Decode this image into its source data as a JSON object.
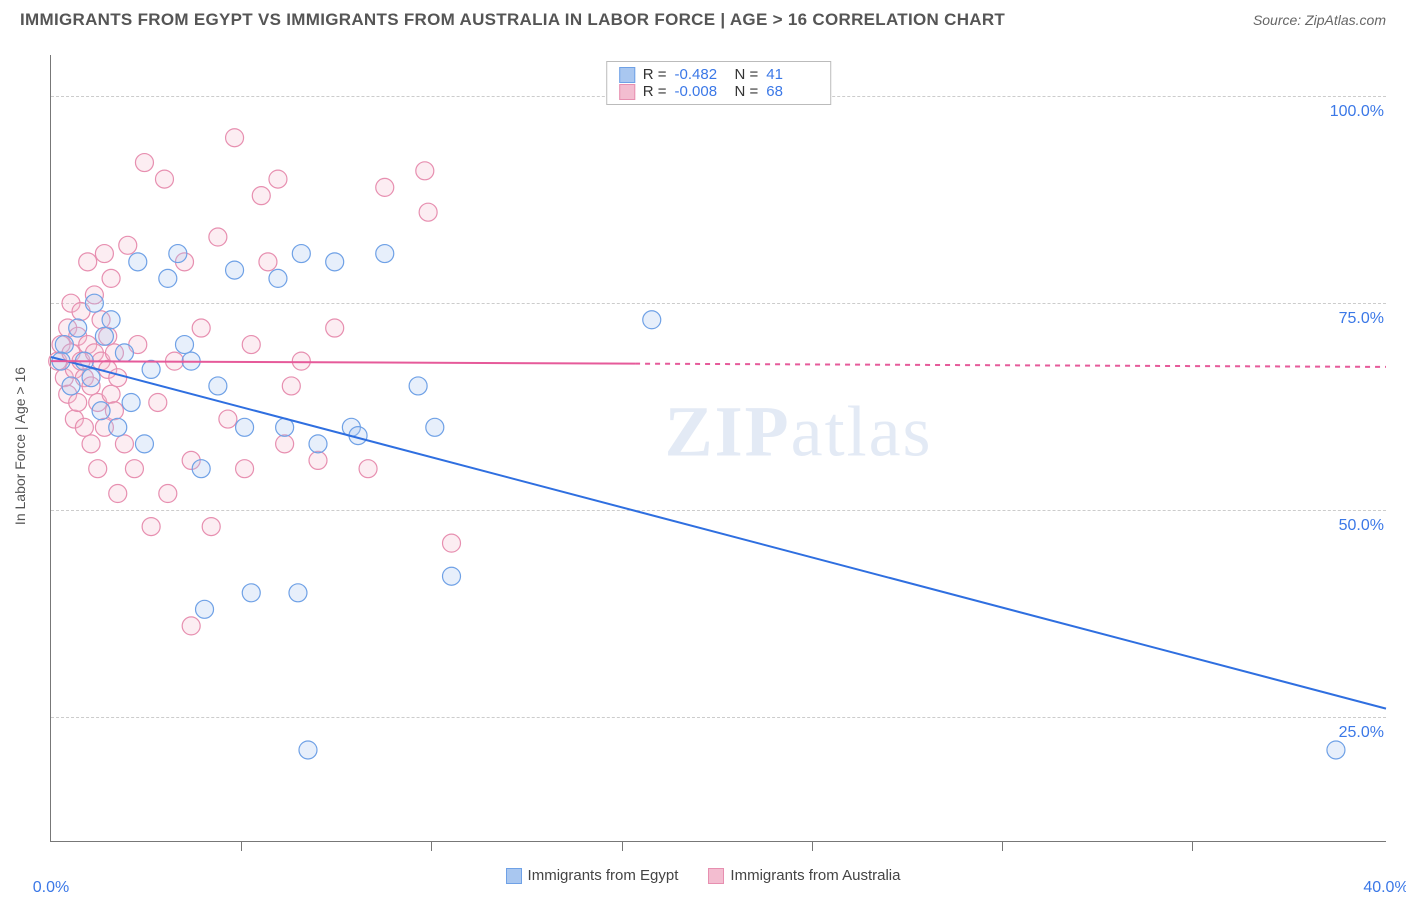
{
  "title": "IMMIGRANTS FROM EGYPT VS IMMIGRANTS FROM AUSTRALIA IN LABOR FORCE | AGE > 16 CORRELATION CHART",
  "source_prefix": "Source: ",
  "source_name": "ZipAtlas.com",
  "y_axis_label": "In Labor Force | Age > 16",
  "watermark_bold": "ZIP",
  "watermark_rest": "atlas",
  "chart": {
    "type": "scatter",
    "xlim": [
      0,
      40
    ],
    "ylim": [
      10,
      105
    ],
    "x_ticks": [
      0,
      40
    ],
    "x_tick_minor": [
      5.7,
      11.4,
      17.1,
      22.8,
      28.5,
      34.2
    ],
    "x_tick_labels": [
      "0.0%",
      "40.0%"
    ],
    "y_ticks": [
      25,
      50,
      75,
      100
    ],
    "y_tick_labels": [
      "25.0%",
      "50.0%",
      "75.0%",
      "100.0%"
    ],
    "background_color": "#ffffff",
    "grid_color": "#cccccc",
    "marker_radius": 9,
    "marker_stroke_width": 1.2,
    "marker_fill_opacity": 0.28,
    "series": [
      {
        "name": "Immigrants from Egypt",
        "color_stroke": "#6fa1e6",
        "color_fill": "#a9c7f0",
        "trend": {
          "x1": 0,
          "y1": 68.5,
          "x2": 40,
          "y2": 26,
          "solid_until_x": 40,
          "color": "#2f6fe0",
          "width": 2
        },
        "stats": {
          "R": "-0.482",
          "N": "41"
        },
        "points": [
          [
            0.4,
            70
          ],
          [
            0.6,
            65
          ],
          [
            0.8,
            72
          ],
          [
            1.0,
            68
          ],
          [
            1.2,
            66
          ],
          [
            1.3,
            75
          ],
          [
            1.5,
            62
          ],
          [
            1.6,
            71
          ],
          [
            1.8,
            73
          ],
          [
            2.0,
            60
          ],
          [
            2.2,
            69
          ],
          [
            2.4,
            63
          ],
          [
            2.6,
            80
          ],
          [
            2.8,
            58
          ],
          [
            3.0,
            67
          ],
          [
            3.5,
            78
          ],
          [
            3.8,
            81
          ],
          [
            4.0,
            70
          ],
          [
            4.2,
            68
          ],
          [
            4.5,
            55
          ],
          [
            4.6,
            38
          ],
          [
            5.0,
            65
          ],
          [
            5.5,
            79
          ],
          [
            5.8,
            60
          ],
          [
            6.0,
            40
          ],
          [
            6.8,
            78
          ],
          [
            7.0,
            60
          ],
          [
            7.4,
            40
          ],
          [
            7.5,
            81
          ],
          [
            8.0,
            58
          ],
          [
            8.5,
            80
          ],
          [
            9.0,
            60
          ],
          [
            9.2,
            59
          ],
          [
            10.0,
            81
          ],
          [
            11.0,
            65
          ],
          [
            11.5,
            60
          ],
          [
            12.0,
            42
          ],
          [
            7.7,
            21
          ],
          [
            18.0,
            73
          ],
          [
            38.5,
            21
          ],
          [
            0.3,
            68
          ]
        ]
      },
      {
        "name": "Immigrants from Australia",
        "color_stroke": "#e78fb0",
        "color_fill": "#f3bdd0",
        "trend": {
          "x1": 0,
          "y1": 68,
          "x2": 40,
          "y2": 67.3,
          "solid_until_x": 17.5,
          "color": "#e65a9a",
          "width": 2
        },
        "stats": {
          "R": "-0.008",
          "N": "68"
        },
        "points": [
          [
            0.2,
            68
          ],
          [
            0.3,
            70
          ],
          [
            0.4,
            66
          ],
          [
            0.5,
            72
          ],
          [
            0.5,
            64
          ],
          [
            0.6,
            69
          ],
          [
            0.6,
            75
          ],
          [
            0.7,
            61
          ],
          [
            0.7,
            67
          ],
          [
            0.8,
            71
          ],
          [
            0.8,
            63
          ],
          [
            0.9,
            68
          ],
          [
            0.9,
            74
          ],
          [
            1.0,
            60
          ],
          [
            1.0,
            66
          ],
          [
            1.1,
            70
          ],
          [
            1.1,
            80
          ],
          [
            1.2,
            58
          ],
          [
            1.2,
            65
          ],
          [
            1.3,
            69
          ],
          [
            1.3,
            76
          ],
          [
            1.4,
            55
          ],
          [
            1.4,
            63
          ],
          [
            1.5,
            68
          ],
          [
            1.5,
            73
          ],
          [
            1.6,
            81
          ],
          [
            1.6,
            60
          ],
          [
            1.7,
            67
          ],
          [
            1.7,
            71
          ],
          [
            1.8,
            64
          ],
          [
            1.8,
            78
          ],
          [
            1.9,
            62
          ],
          [
            1.9,
            69
          ],
          [
            2.0,
            52
          ],
          [
            2.0,
            66
          ],
          [
            2.2,
            58
          ],
          [
            2.3,
            82
          ],
          [
            2.5,
            55
          ],
          [
            2.6,
            70
          ],
          [
            2.8,
            92
          ],
          [
            3.0,
            48
          ],
          [
            3.2,
            63
          ],
          [
            3.4,
            90
          ],
          [
            3.5,
            52
          ],
          [
            3.7,
            68
          ],
          [
            4.0,
            80
          ],
          [
            4.2,
            56
          ],
          [
            4.2,
            36
          ],
          [
            4.5,
            72
          ],
          [
            4.8,
            48
          ],
          [
            5.0,
            83
          ],
          [
            5.3,
            61
          ],
          [
            5.5,
            95
          ],
          [
            5.8,
            55
          ],
          [
            6.0,
            70
          ],
          [
            6.3,
            88
          ],
          [
            6.5,
            80
          ],
          [
            6.8,
            90
          ],
          [
            7.0,
            58
          ],
          [
            7.5,
            68
          ],
          [
            8.0,
            56
          ],
          [
            8.5,
            72
          ],
          [
            9.5,
            55
          ],
          [
            10.0,
            89
          ],
          [
            11.2,
            91
          ],
          [
            11.3,
            86
          ],
          [
            12.0,
            46
          ],
          [
            7.2,
            65
          ]
        ]
      }
    ]
  },
  "legend_bottom": [
    {
      "label": "Immigrants from Egypt",
      "fill": "#a9c7f0",
      "stroke": "#6fa1e6"
    },
    {
      "label": "Immigrants from Australia",
      "fill": "#f3bdd0",
      "stroke": "#e78fb0"
    }
  ],
  "stats_labels": {
    "R": "R =",
    "N": "N ="
  }
}
